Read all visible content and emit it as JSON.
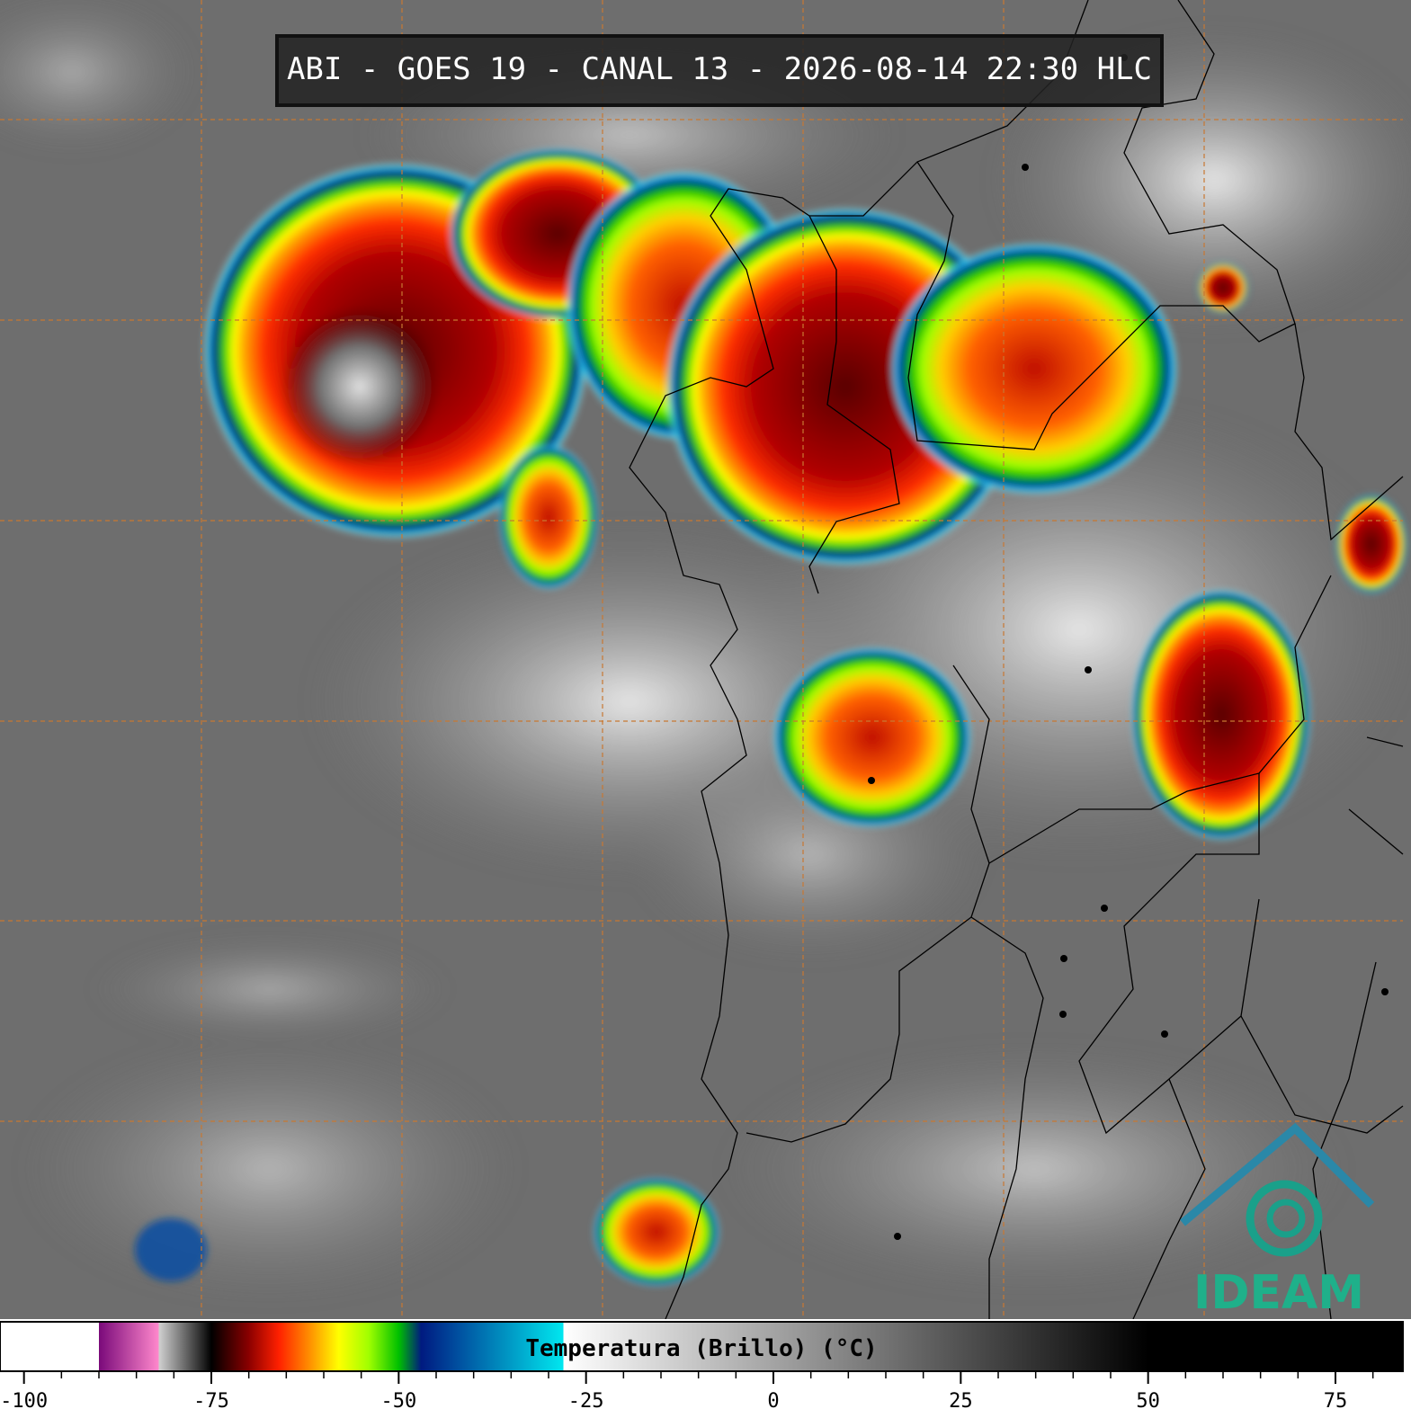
{
  "map": {
    "title": "ABI - GOES 19 - CANAL 13 - 2026-08-14 22:30 HLC",
    "logo": "IDEAM"
  },
  "colorbar": {
    "label": "Temperatura (Brillo) (°C)",
    "lim": [
      -103.2,
      84
    ],
    "ticks": [
      -100,
      -75,
      -50,
      -25,
      0,
      25,
      50,
      75
    ],
    "minor_ticks": [
      -95,
      -90,
      -85,
      -80,
      -70,
      -65,
      -60,
      -55,
      -45,
      -40,
      -35,
      -30,
      -20,
      -15,
      -10,
      -5,
      5,
      10,
      15,
      20,
      30,
      35,
      40,
      45,
      55,
      60,
      65,
      70,
      80
    ],
    "stops": [
      {
        "value": -103.2,
        "color": "#ffffff"
      },
      {
        "value": -90,
        "color": "#ffffff"
      },
      {
        "value": -90,
        "color": "#7a0a7a"
      },
      {
        "value": -82,
        "color": "#ff88cc"
      },
      {
        "value": -82,
        "color": "#d0d0d0"
      },
      {
        "value": -76,
        "color": "#202020"
      },
      {
        "value": -75,
        "color": "#000000"
      },
      {
        "value": -70,
        "color": "#8b0000"
      },
      {
        "value": -66,
        "color": "#ff2000"
      },
      {
        "value": -62,
        "color": "#ff8c00"
      },
      {
        "value": -58,
        "color": "#ffff00"
      },
      {
        "value": -54,
        "color": "#a0ff00"
      },
      {
        "value": -50,
        "color": "#00c000"
      },
      {
        "value": -47,
        "color": "#001a80"
      },
      {
        "value": -42,
        "color": "#0050a0"
      },
      {
        "value": -36,
        "color": "#0090c0"
      },
      {
        "value": -28,
        "color": "#00e8f0"
      },
      {
        "value": -28,
        "color": "#ffffff"
      },
      {
        "value": 50,
        "color": "#000000"
      },
      {
        "value": 84,
        "color": "#000000"
      }
    ]
  }
}
